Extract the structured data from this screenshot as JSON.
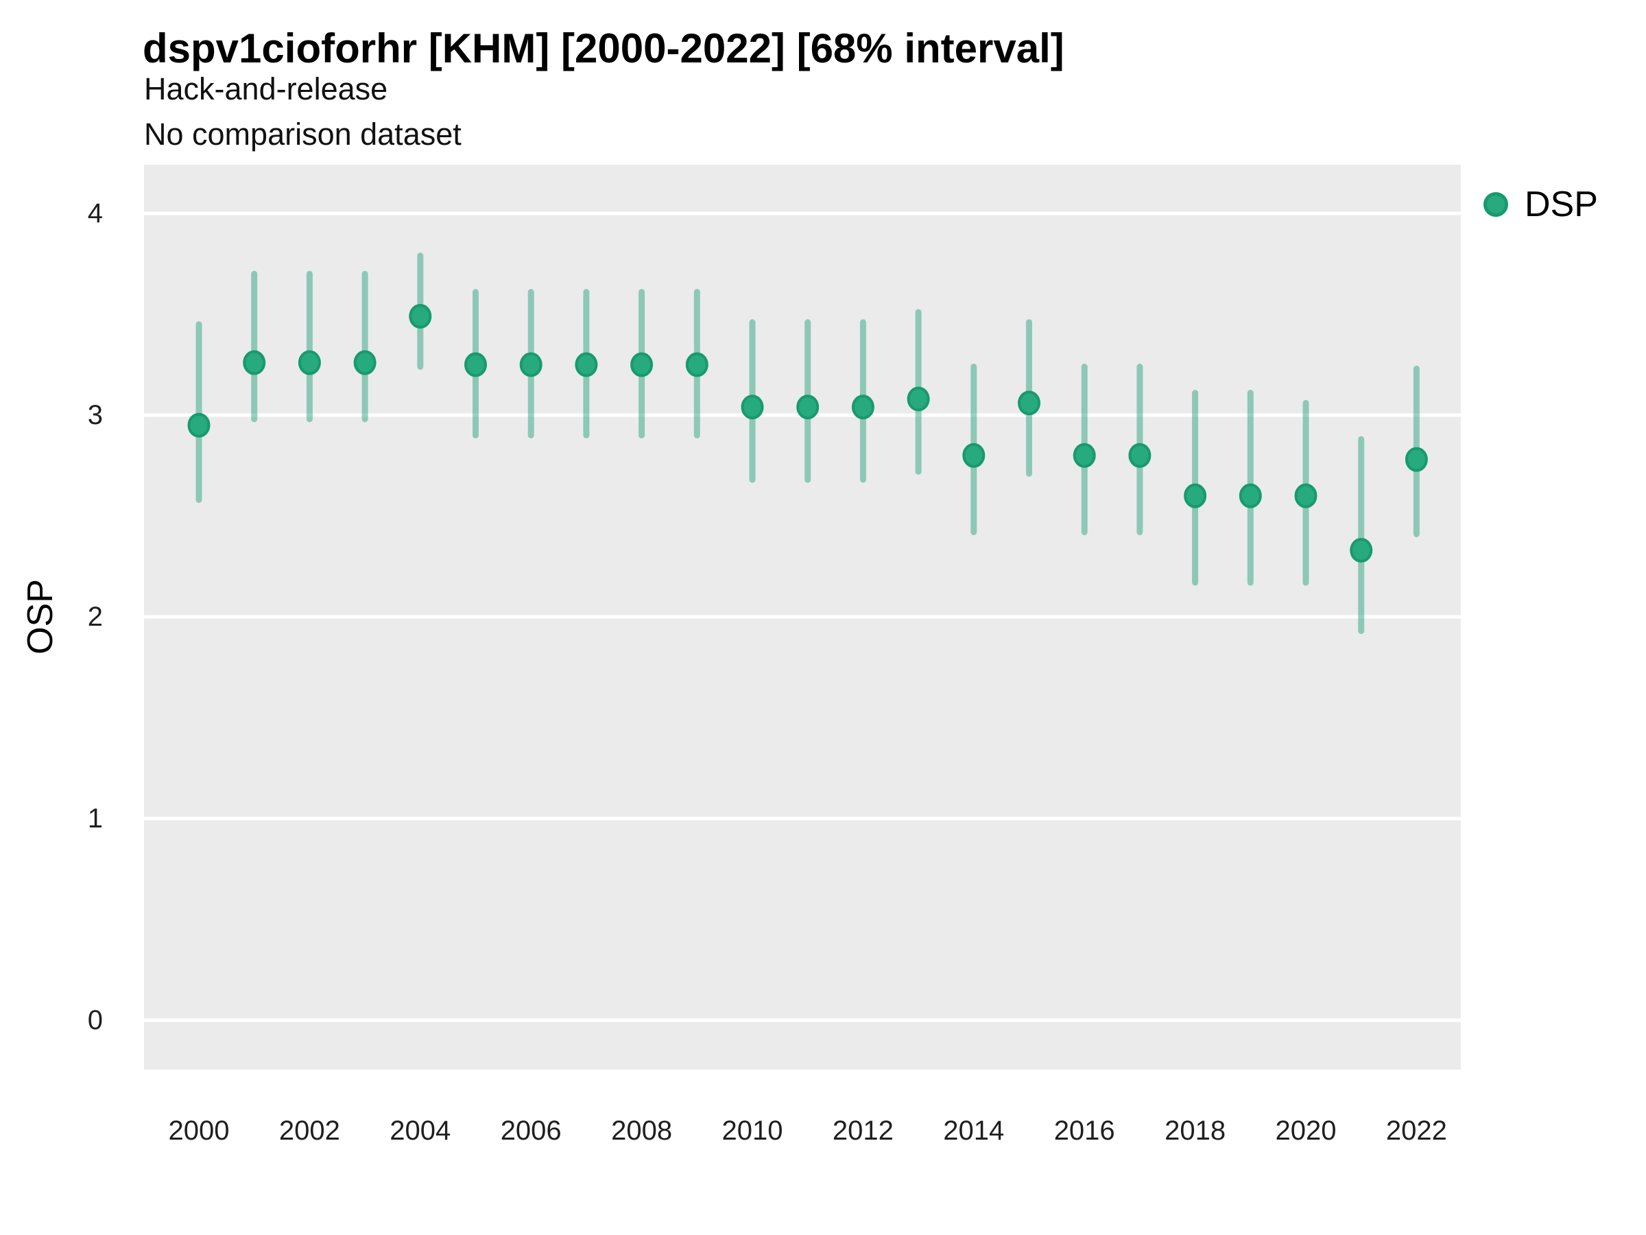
{
  "header": {
    "title": "dspv1cioforhr [KHM] [2000-2022] [68% interval]",
    "subtitle_line1": "Hack-and-release",
    "subtitle_line2": "No comparison dataset"
  },
  "colors": {
    "point_fill": "#26aa7e",
    "point_stroke": "#189a6d",
    "interval_line": "rgba(27,158,119,0.45)",
    "panel_background": "#ebebeb",
    "gridline": "#ffffff",
    "text": "#000000"
  },
  "chart_data": {
    "type": "scatter",
    "variant": "pointrange",
    "title": "dspv1cioforhr [KHM] [2000-2022] [68% interval]",
    "subtitle": [
      "Hack-and-release",
      "No comparison dataset"
    ],
    "xlabel": "",
    "ylabel": "OSP",
    "interval_level": "68%",
    "legend_position": "right",
    "grid": "horizontal-major-only",
    "x_ticks": [
      2000,
      2002,
      2004,
      2006,
      2008,
      2010,
      2012,
      2014,
      2016,
      2018,
      2020,
      2022
    ],
    "y_ticks": [
      0,
      1,
      2,
      3,
      4
    ],
    "ylim": [
      -0.25,
      4.25
    ],
    "xlim": [
      1999,
      2023
    ],
    "series": [
      {
        "name": "DSP",
        "color": "#26aa7e",
        "points": [
          {
            "x": 2000,
            "y": 2.95,
            "lo": 2.58,
            "hi": 3.45
          },
          {
            "x": 2001,
            "y": 3.26,
            "lo": 2.98,
            "hi": 3.7
          },
          {
            "x": 2002,
            "y": 3.26,
            "lo": 2.98,
            "hi": 3.7
          },
          {
            "x": 2003,
            "y": 3.26,
            "lo": 2.98,
            "hi": 3.7
          },
          {
            "x": 2004,
            "y": 3.49,
            "lo": 3.24,
            "hi": 3.79
          },
          {
            "x": 2005,
            "y": 3.25,
            "lo": 2.9,
            "hi": 3.61
          },
          {
            "x": 2006,
            "y": 3.25,
            "lo": 2.9,
            "hi": 3.61
          },
          {
            "x": 2007,
            "y": 3.25,
            "lo": 2.9,
            "hi": 3.61
          },
          {
            "x": 2008,
            "y": 3.25,
            "lo": 2.9,
            "hi": 3.61
          },
          {
            "x": 2009,
            "y": 3.25,
            "lo": 2.9,
            "hi": 3.61
          },
          {
            "x": 2010,
            "y": 3.04,
            "lo": 2.68,
            "hi": 3.46
          },
          {
            "x": 2011,
            "y": 3.04,
            "lo": 2.68,
            "hi": 3.46
          },
          {
            "x": 2012,
            "y": 3.04,
            "lo": 2.68,
            "hi": 3.46
          },
          {
            "x": 2013,
            "y": 3.08,
            "lo": 2.72,
            "hi": 3.51
          },
          {
            "x": 2014,
            "y": 2.8,
            "lo": 2.42,
            "hi": 3.24
          },
          {
            "x": 2015,
            "y": 3.06,
            "lo": 2.71,
            "hi": 3.46
          },
          {
            "x": 2016,
            "y": 2.8,
            "lo": 2.42,
            "hi": 3.24
          },
          {
            "x": 2017,
            "y": 2.8,
            "lo": 2.42,
            "hi": 3.24
          },
          {
            "x": 2018,
            "y": 2.6,
            "lo": 2.17,
            "hi": 3.11
          },
          {
            "x": 2019,
            "y": 2.6,
            "lo": 2.17,
            "hi": 3.11
          },
          {
            "x": 2020,
            "y": 2.6,
            "lo": 2.17,
            "hi": 3.06
          },
          {
            "x": 2021,
            "y": 2.33,
            "lo": 1.93,
            "hi": 2.88
          },
          {
            "x": 2022,
            "y": 2.78,
            "lo": 2.41,
            "hi": 3.23
          }
        ]
      }
    ]
  }
}
